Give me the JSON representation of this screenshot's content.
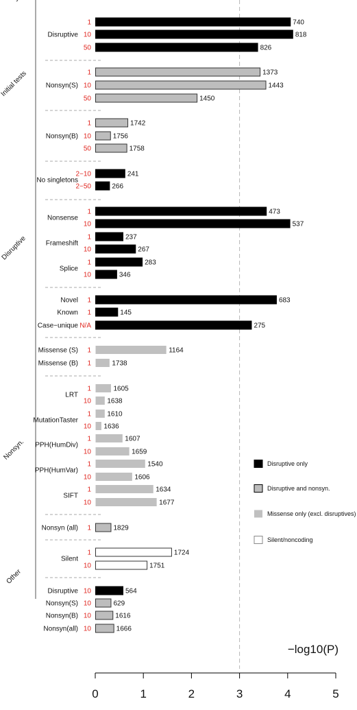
{
  "chart_data": {
    "type": "bar",
    "orientation": "horizontal",
    "xlabel": "−log10(P)",
    "xlim": [
      0,
      5
    ],
    "xticks": [
      "0",
      "1",
      "2",
      "3",
      "4",
      "5"
    ],
    "threshold": 3,
    "colors": {
      "disruptive": "#000000",
      "both": "#bdbdbd",
      "missense": "#c0c0c0",
      "silent": "#ffffff"
    },
    "legend": {
      "placement": "right",
      "entries": [
        {
          "key": "disruptive",
          "label": "Disruptive only"
        },
        {
          "key": "both",
          "label": "Disruptive and nonsyn."
        },
        {
          "key": "missense",
          "label": "Missense only (excl. disruptives)"
        },
        {
          "key": "silent",
          "label": "Silent/noncoding"
        }
      ]
    },
    "groups": [
      {
        "name": "Initial tests",
        "from": 0,
        "to": 8
      },
      {
        "name": "Disruptive",
        "from": 9,
        "to": 19
      },
      {
        "name": "Nonsyn.",
        "from": 20,
        "to": 33
      },
      {
        "name": "Other",
        "from": 34,
        "to": 35
      },
      {
        "name": "Exome array",
        "from": 36,
        "to": 39
      }
    ],
    "bars": [
      {
        "label": "",
        "threshold": "1",
        "value": 4.05,
        "count": "740",
        "kind": "disruptive"
      },
      {
        "label": "Disruptive",
        "threshold": "10",
        "value": 4.1,
        "count": "818",
        "kind": "disruptive"
      },
      {
        "label": "",
        "threshold": "50",
        "value": 3.37,
        "count": "826",
        "kind": "disruptive"
      },
      {
        "label": "",
        "threshold": "1",
        "value": 3.42,
        "count": "1373",
        "kind": "both"
      },
      {
        "label": "Nonsyn(S)",
        "threshold": "10",
        "value": 3.54,
        "count": "1443",
        "kind": "both"
      },
      {
        "label": "",
        "threshold": "50",
        "value": 2.11,
        "count": "1450",
        "kind": "both"
      },
      {
        "label": "",
        "threshold": "1",
        "value": 0.67,
        "count": "1742",
        "kind": "both"
      },
      {
        "label": "Nonsyn(B)",
        "threshold": "10",
        "value": 0.31,
        "count": "1756",
        "kind": "both"
      },
      {
        "label": "",
        "threshold": "50",
        "value": 0.65,
        "count": "1758",
        "kind": "both"
      },
      {
        "label": "",
        "threshold": "2−10",
        "value": 0.61,
        "count": "241",
        "kind": "disruptive"
      },
      {
        "label": "",
        "threshold": "2−50",
        "value": 0.29,
        "count": "266",
        "kind": "disruptive"
      },
      {
        "label": "Nonsense",
        "threshold": "1",
        "value": 3.55,
        "count": "473",
        "kind": "disruptive"
      },
      {
        "label": "",
        "threshold": "10",
        "value": 4.04,
        "count": "537",
        "kind": "disruptive"
      },
      {
        "label": "Frameshift",
        "threshold": "1",
        "value": 0.57,
        "count": "237",
        "kind": "disruptive"
      },
      {
        "label": "",
        "threshold": "10",
        "value": 0.83,
        "count": "267",
        "kind": "disruptive"
      },
      {
        "label": "Splice",
        "threshold": "1",
        "value": 0.97,
        "count": "283",
        "kind": "disruptive"
      },
      {
        "label": "",
        "threshold": "10",
        "value": 0.44,
        "count": "346",
        "kind": "disruptive"
      },
      {
        "label": "Novel",
        "threshold": "1",
        "value": 3.76,
        "count": "683",
        "kind": "disruptive"
      },
      {
        "label": "Known",
        "threshold": "1",
        "value": 0.46,
        "count": "145",
        "kind": "disruptive"
      },
      {
        "label": "Case−unique",
        "threshold": "N/A",
        "value": 3.24,
        "count": "275",
        "kind": "disruptive"
      },
      {
        "label": "Missense (S)",
        "threshold": "1",
        "value": 1.47,
        "count": "1164",
        "kind": "missense"
      },
      {
        "label": "Missense (B)",
        "threshold": "1",
        "value": 0.29,
        "count": "1738",
        "kind": "missense"
      },
      {
        "label": "LRT",
        "threshold": "1",
        "value": 0.32,
        "count": "1605",
        "kind": "missense"
      },
      {
        "label": "",
        "threshold": "10",
        "value": 0.19,
        "count": "1638",
        "kind": "missense"
      },
      {
        "label": "MutationTaster",
        "threshold": "1",
        "value": 0.19,
        "count": "1610",
        "kind": "missense"
      },
      {
        "label": "",
        "threshold": "10",
        "value": 0.12,
        "count": "1636",
        "kind": "missense"
      },
      {
        "label": "PPH(HumDiv)",
        "threshold": "1",
        "value": 0.56,
        "count": "1607",
        "kind": "missense"
      },
      {
        "label": "",
        "threshold": "10",
        "value": 0.7,
        "count": "1659",
        "kind": "missense"
      },
      {
        "label": "PPH(HumVar)",
        "threshold": "1",
        "value": 1.03,
        "count": "1540",
        "kind": "missense"
      },
      {
        "label": "",
        "threshold": "10",
        "value": 0.76,
        "count": "1606",
        "kind": "missense"
      },
      {
        "label": "SIFT",
        "threshold": "1",
        "value": 1.2,
        "count": "1634",
        "kind": "missense"
      },
      {
        "label": "",
        "threshold": "10",
        "value": 1.27,
        "count": "1677",
        "kind": "missense"
      },
      {
        "label": "Nonsyn (all)",
        "threshold": "1",
        "value": 0.32,
        "count": "1829",
        "kind": "both"
      },
      {
        "label": "Silent",
        "threshold": "1",
        "value": 1.58,
        "count": "1724",
        "kind": "silent"
      },
      {
        "label": "",
        "threshold": "10",
        "value": 1.07,
        "count": "1751",
        "kind": "silent"
      },
      {
        "label": "Disruptive",
        "threshold": "10",
        "value": 0.57,
        "count": "564",
        "kind": "disruptive"
      },
      {
        "label": "Nonsyn(S)",
        "threshold": "10",
        "value": 0.32,
        "count": "629",
        "kind": "both"
      },
      {
        "label": "Nonsyn(B)",
        "threshold": "10",
        "value": 0.36,
        "count": "1616",
        "kind": "both"
      },
      {
        "label": "Nonsyn(all)",
        "threshold": "10",
        "value": 0.38,
        "count": "1666",
        "kind": "both"
      }
    ]
  }
}
